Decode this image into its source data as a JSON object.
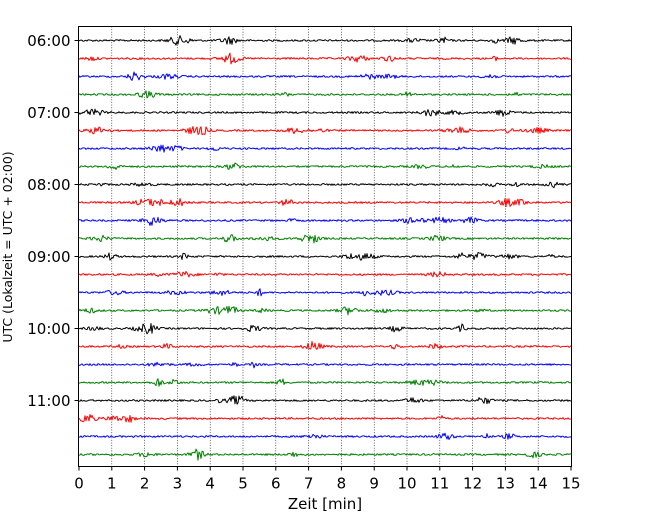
{
  "chart_data": {
    "type": "line",
    "title": "",
    "xlabel": "Zeit  [min]",
    "ylabel": "UTC (Lokalzeit = UTC + 02:00)",
    "xlim": [
      0,
      15
    ],
    "x_ticks": [
      "0",
      "1",
      "2",
      "3",
      "4",
      "5",
      "6",
      "7",
      "8",
      "9",
      "10",
      "11",
      "12",
      "13",
      "14",
      "15"
    ],
    "grid": "vertical dotted at each minute",
    "row_start_utc": "06:00",
    "row_interval_min": 15,
    "rows": 24,
    "y_tick_labels": [
      "06:00",
      "07:00",
      "08:00",
      "09:00",
      "10:00",
      "11:00"
    ],
    "colors": [
      "#000000",
      "#ff0000",
      "#0000ff",
      "#008000"
    ],
    "series_type": "seismogram traces (helicorder), one 15-minute trace per row"
  }
}
